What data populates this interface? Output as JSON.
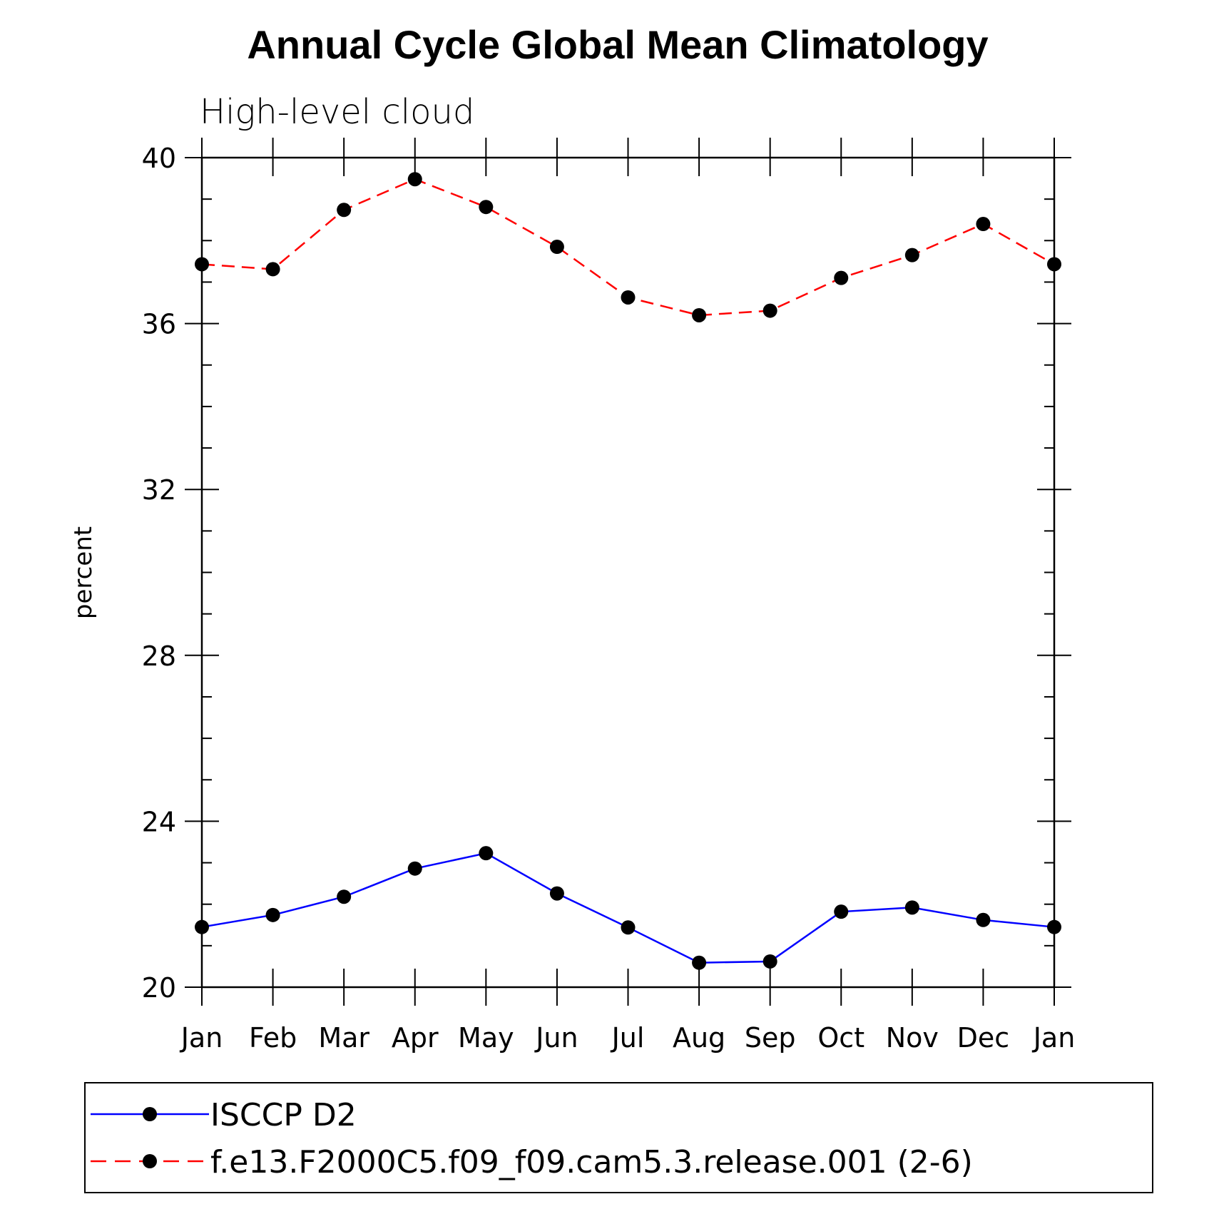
{
  "chart_data": {
    "type": "line",
    "title": "Annual Cycle Global Mean Climatology",
    "subtitle": "High-level cloud",
    "xlabel": "",
    "ylabel": "percent",
    "ylim": [
      20,
      40
    ],
    "yticks": [
      "20",
      "24",
      "28",
      "32",
      "36",
      "40"
    ],
    "categories": [
      "Jan",
      "Feb",
      "Mar",
      "Apr",
      "May",
      "Jun",
      "Jul",
      "Aug",
      "Sep",
      "Oct",
      "Nov",
      "Dec",
      "Jan"
    ],
    "series": [
      {
        "name": "ISCCP D2",
        "color": "#0000ff",
        "dash": "solid",
        "values": [
          21.45,
          21.74,
          22.18,
          22.86,
          23.23,
          22.26,
          21.44,
          20.59,
          20.62,
          21.82,
          21.92,
          21.62,
          21.45
        ]
      },
      {
        "name": "f.e13.F2000C5.f09_f09.cam5.3.release.001 (2-6)",
        "color": "#ff0000",
        "dash": "dashed",
        "values": [
          37.43,
          37.31,
          38.74,
          39.48,
          38.81,
          37.85,
          36.63,
          36.2,
          36.31,
          37.1,
          37.65,
          38.4,
          37.43
        ]
      }
    ],
    "legend": "bottom"
  }
}
